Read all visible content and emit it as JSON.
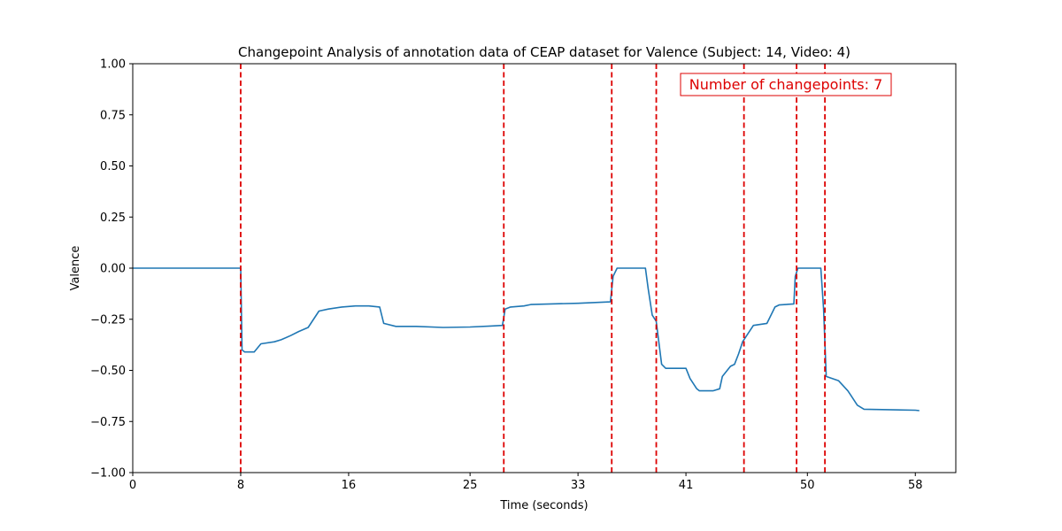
{
  "chart_data": {
    "type": "line",
    "title": "Changepoint Analysis of annotation data of CEAP dataset for Valence (Subject: 14, Video: 4)",
    "xlabel": "Time (seconds)",
    "ylabel": "Valence",
    "xlim": [
      0,
      61
    ],
    "ylim": [
      -1.0,
      1.0
    ],
    "x_ticks": [
      0,
      8,
      16,
      25,
      33,
      41,
      50,
      58
    ],
    "y_ticks": [
      -1.0,
      -0.75,
      -0.5,
      -0.25,
      0.0,
      0.25,
      0.5,
      0.75,
      1.0
    ],
    "y_tick_labels": [
      "−1.00",
      "−0.75",
      "−0.50",
      "−0.25",
      "0.00",
      "0.25",
      "0.50",
      "0.75",
      "1.00"
    ],
    "grid": false,
    "line_color": "#1f77b4",
    "changepoint_color": "#dd0000",
    "changepoints": [
      8.0,
      27.5,
      35.5,
      38.8,
      45.3,
      49.2,
      51.3
    ],
    "annotation": "Number of changepoints: 7",
    "series": [
      {
        "x": [
          0,
          8.0,
          8.1,
          8.3,
          9.0,
          9.5,
          10.5,
          11.0,
          11.7,
          12.3,
          13.0,
          13.8,
          14.5,
          15.5,
          16.5,
          17.5,
          18.3,
          18.6,
          19.5,
          21.0,
          23.0,
          25.0,
          26.5,
          27.4,
          27.6,
          28.0,
          29.0,
          29.5,
          31.0,
          33.0,
          35.4,
          35.6,
          35.9,
          38.0,
          38.2,
          38.5,
          38.8,
          39.2,
          39.5,
          41.0,
          41.3,
          41.8,
          42.0,
          43.0,
          43.5,
          43.7,
          44.3,
          44.6,
          44.9,
          45.2,
          45.5,
          46.0,
          47.0,
          47.6,
          47.9,
          49.0,
          49.1,
          49.3,
          51.0,
          51.2,
          51.4,
          52.3,
          53.0,
          53.2,
          53.7,
          54.2,
          56.0,
          58.0,
          58.3
        ],
        "y": [
          0.0,
          0.0,
          -0.4,
          -0.41,
          -0.41,
          -0.37,
          -0.36,
          -0.35,
          -0.33,
          -0.31,
          -0.29,
          -0.21,
          -0.2,
          -0.19,
          -0.185,
          -0.185,
          -0.19,
          -0.27,
          -0.285,
          -0.285,
          -0.29,
          -0.288,
          -0.283,
          -0.28,
          -0.2,
          -0.19,
          -0.185,
          -0.178,
          -0.175,
          -0.172,
          -0.165,
          -0.04,
          0.0,
          0.0,
          -0.1,
          -0.23,
          -0.26,
          -0.47,
          -0.49,
          -0.49,
          -0.54,
          -0.59,
          -0.6,
          -0.6,
          -0.59,
          -0.53,
          -0.48,
          -0.47,
          -0.42,
          -0.36,
          -0.33,
          -0.28,
          -0.27,
          -0.19,
          -0.18,
          -0.175,
          -0.04,
          0.0,
          0.0,
          -0.2,
          -0.53,
          -0.55,
          -0.6,
          -0.62,
          -0.67,
          -0.69,
          -0.692,
          -0.695,
          -0.697
        ]
      }
    ]
  }
}
